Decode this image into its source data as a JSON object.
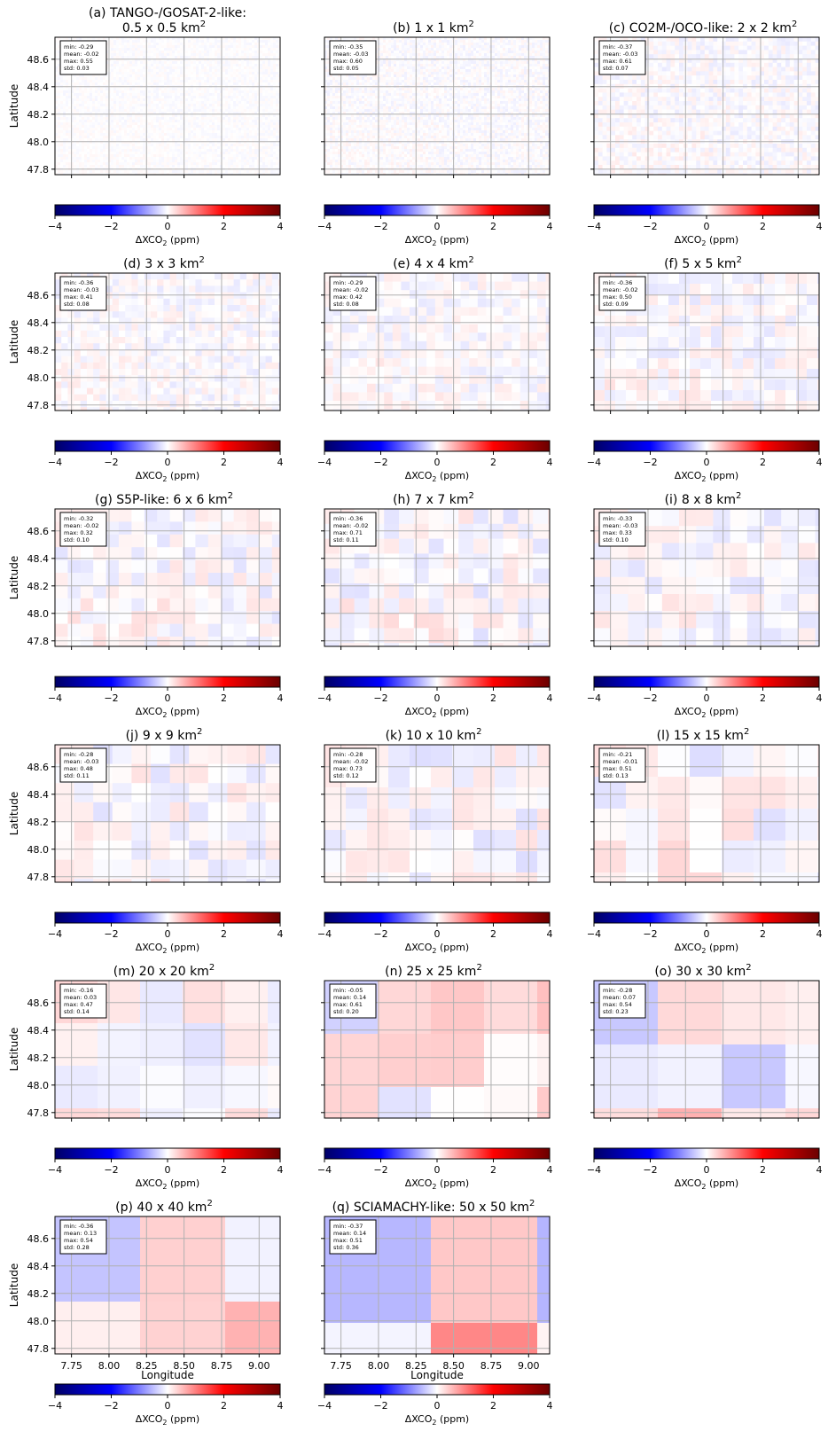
{
  "figure": {
    "x_label": "Longitude",
    "y_label": "Latitude",
    "colorbar_label": "ΔXCO",
    "colorbar_sub": "2",
    "colorbar_unit": " (ppm)",
    "colorbar_ticks": [
      "−4",
      "−2",
      "0",
      "2",
      "4"
    ],
    "colorbar_ticks_values": [
      -4,
      -2,
      0,
      2,
      4
    ],
    "x_ticks": [
      "7.75",
      "8.00",
      "8.25",
      "8.50",
      "8.75",
      "9.00"
    ],
    "y_ticks": [
      "47.8",
      "48.0",
      "48.2",
      "48.4",
      "48.6"
    ],
    "stat_labels": [
      "min:",
      "mean:",
      "max:",
      "std:"
    ],
    "colors": {
      "negative": "#0000ff",
      "positive": "#ff0000",
      "zero": "#ffffff",
      "grid": "#b0b0b0"
    }
  },
  "chart_data": [
    {
      "type": "heatmap",
      "title": "(a) TANGO-/GOSAT-2-like:",
      "title2": "0.5 x 0.5 km",
      "resolution_km": 0.5,
      "stats": {
        "min": "-0.29",
        "mean": "-0.02",
        "max": "0.55",
        "std": "0.03"
      }
    },
    {
      "type": "heatmap",
      "title": "(b) 1 x 1 km",
      "resolution_km": 1,
      "stats": {
        "min": "-0.35",
        "mean": "-0.03",
        "max": "0.60",
        "std": "0.05"
      }
    },
    {
      "type": "heatmap",
      "title": "(c) CO2M-/OCO-like: 2 x 2 km",
      "resolution_km": 2,
      "stats": {
        "min": "-0.37",
        "mean": "-0.03",
        "max": "0.61",
        "std": "0.07"
      }
    },
    {
      "type": "heatmap",
      "title": "(d) 3 x 3 km",
      "resolution_km": 3,
      "stats": {
        "min": "-0.36",
        "mean": "-0.03",
        "max": "0.41",
        "std": "0.08"
      }
    },
    {
      "type": "heatmap",
      "title": "(e) 4 x 4 km",
      "resolution_km": 4,
      "stats": {
        "min": "-0.29",
        "mean": "-0.02",
        "max": "0.42",
        "std": "0.08"
      }
    },
    {
      "type": "heatmap",
      "title": "(f) 5 x 5 km",
      "resolution_km": 5,
      "stats": {
        "min": "-0.36",
        "mean": "-0.02",
        "max": "0.50",
        "std": "0.09"
      }
    },
    {
      "type": "heatmap",
      "title": "(g) S5P-like: 6 x 6 km",
      "resolution_km": 6,
      "stats": {
        "min": "-0.32",
        "mean": "-0.02",
        "max": "0.32",
        "std": "0.10"
      }
    },
    {
      "type": "heatmap",
      "title": "(h) 7 x 7 km",
      "resolution_km": 7,
      "stats": {
        "min": "-0.36",
        "mean": "-0.02",
        "max": "0.71",
        "std": "0.11"
      }
    },
    {
      "type": "heatmap",
      "title": "(i) 8 x 8 km",
      "resolution_km": 8,
      "stats": {
        "min": "-0.33",
        "mean": "-0.03",
        "max": "0.33",
        "std": "0.10"
      }
    },
    {
      "type": "heatmap",
      "title": "(j) 9 x 9 km",
      "resolution_km": 9,
      "stats": {
        "min": "-0.28",
        "mean": "-0.03",
        "max": "0.48",
        "std": "0.11"
      }
    },
    {
      "type": "heatmap",
      "title": "(k) 10 x 10 km",
      "resolution_km": 10,
      "stats": {
        "min": "-0.28",
        "mean": "-0.02",
        "max": "0.73",
        "std": "0.12"
      }
    },
    {
      "type": "heatmap",
      "title": "(l) 15 x 15 km",
      "resolution_km": 15,
      "stats": {
        "min": "-0.21",
        "mean": "-0.01",
        "max": "0.51",
        "std": "0.13"
      }
    },
    {
      "type": "heatmap",
      "title": "(m) 20 x 20 km",
      "resolution_km": 20,
      "stats": {
        "min": "-0.16",
        "mean": "0.03",
        "max": "0.47",
        "std": "0.14"
      }
    },
    {
      "type": "heatmap",
      "title": "(n) 25 x 25 km",
      "resolution_km": 25,
      "stats": {
        "min": "-0.05",
        "mean": "0.14",
        "max": "0.61",
        "std": "0.20"
      }
    },
    {
      "type": "heatmap",
      "title": "(o) 30 x 30 km",
      "resolution_km": 30,
      "stats": {
        "min": "-0.28",
        "mean": "0.07",
        "max": "0.54",
        "std": "0.23"
      }
    },
    {
      "type": "heatmap",
      "title": "(p) 40 x 40 km",
      "resolution_km": 40,
      "stats": {
        "min": "-0.36",
        "mean": "0.13",
        "max": "0.54",
        "std": "0.28"
      }
    },
    {
      "type": "heatmap",
      "title": "(q) SCIAMACHY-like: 50 x 50 km",
      "resolution_km": 50,
      "stats": {
        "min": "-0.37",
        "mean": "0.14",
        "max": "0.51",
        "std": "0.36"
      }
    }
  ]
}
